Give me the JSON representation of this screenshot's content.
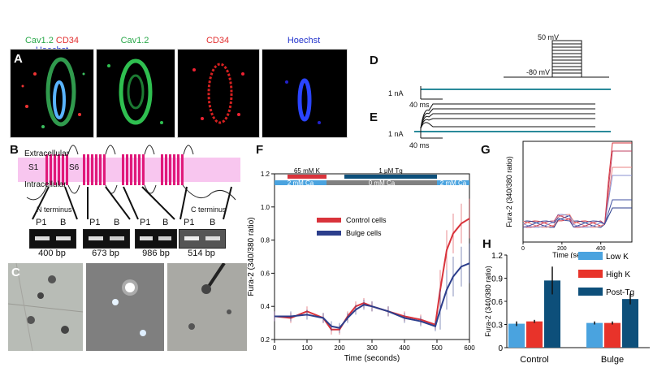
{
  "panels": {
    "A": {
      "label": "A",
      "merge_labels": [
        "Cav1.2",
        "CD34",
        "Hoechst"
      ],
      "channel_titles": [
        "Cav1.2",
        "CD34",
        "Hoechst"
      ]
    },
    "B": {
      "label": "B",
      "extracellular": "Extracellular",
      "intracellular": "Intracellular",
      "s1": "S1",
      "s6": "S6",
      "n_terminus": "N terminus",
      "c_terminus": "C terminus",
      "lanes": [
        "P1",
        "B"
      ],
      "bp": [
        "400 bp",
        "673 bp",
        "986 bp",
        "514 bp"
      ]
    },
    "C": {
      "label": "C"
    },
    "D": {
      "label": "D",
      "top_voltage": "50 mV",
      "hold_voltage": "-80 mV",
      "scale_current": "1 nA",
      "scale_time": "40 ms"
    },
    "E": {
      "label": "E",
      "scale_current": "1 nA",
      "scale_time": "40 ms"
    },
    "F": {
      "label": "F"
    },
    "G": {
      "label": "G"
    },
    "H": {
      "label": "H"
    }
  },
  "colors": {
    "control": "#d9333b",
    "bulge": "#2c3e8c",
    "low_k": "#4aa3df",
    "high_k": "#e8332a",
    "post_tg": "#0d4f7a",
    "membrane": "#f8c6ef",
    "helix": "#e0197a"
  },
  "chart_data": [
    {
      "panel": "F",
      "type": "line",
      "xlabel": "Time (seconds)",
      "ylabel": "Fura-2 (340/380 ratio)",
      "xlim": [
        0,
        600
      ],
      "ylim": [
        0.2,
        1.2
      ],
      "xticks": [
        0,
        100,
        200,
        300,
        400,
        500,
        600
      ],
      "yticks": [
        0.2,
        0.4,
        0.6,
        0.8,
        1.0,
        1.2
      ],
      "condition_bars": [
        {
          "label": "65 mM K",
          "start": 40,
          "end": 160,
          "color": "#d9333b"
        },
        {
          "label": "1 μM Tg",
          "start": 215,
          "end": 500,
          "color": "#0d4f7a"
        },
        {
          "label": "2 mM Ca",
          "start": 0,
          "end": 160,
          "color": "#4aa3df"
        },
        {
          "label": "0 mM Ca",
          "start": 160,
          "end": 500,
          "color": "#808080"
        },
        {
          "label": "2 mM Ca",
          "start": 500,
          "end": 600,
          "color": "#4aa3df"
        }
      ],
      "legend": [
        "Control cells",
        "Bulge cells"
      ],
      "x": [
        0,
        50,
        100,
        150,
        175,
        200,
        225,
        250,
        275,
        300,
        350,
        400,
        450,
        495,
        510,
        530,
        550,
        575,
        600
      ],
      "series": [
        {
          "name": "Control cells",
          "values": [
            0.34,
            0.33,
            0.37,
            0.33,
            0.26,
            0.26,
            0.34,
            0.4,
            0.42,
            0.4,
            0.37,
            0.34,
            0.32,
            0.29,
            0.5,
            0.74,
            0.84,
            0.9,
            0.93
          ]
        },
        {
          "name": "Bulge cells",
          "values": [
            0.34,
            0.34,
            0.35,
            0.33,
            0.28,
            0.27,
            0.33,
            0.38,
            0.41,
            0.4,
            0.37,
            0.33,
            0.31,
            0.28,
            0.38,
            0.5,
            0.58,
            0.64,
            0.66
          ]
        }
      ]
    },
    {
      "panel": "G",
      "type": "line",
      "xlabel": "Time (seconds)",
      "ylabel": "Fura-2 (340/380 ratio)",
      "xlim": [
        0,
        560
      ],
      "xticks": [
        0,
        200,
        400
      ]
    },
    {
      "panel": "H",
      "type": "bar",
      "ylabel": "Fura-2 (340/380 ratio)",
      "ylim": [
        0,
        1.2
      ],
      "yticks": [
        0,
        0.3,
        0.6,
        0.9,
        1.2
      ],
      "categories": [
        "Control",
        "Bulge"
      ],
      "series": [
        {
          "name": "Low K",
          "values": [
            0.31,
            0.32
          ]
        },
        {
          "name": "High K",
          "values": [
            0.34,
            0.32
          ]
        },
        {
          "name": "Post-Tg",
          "values": [
            0.87,
            0.63
          ]
        }
      ]
    }
  ]
}
